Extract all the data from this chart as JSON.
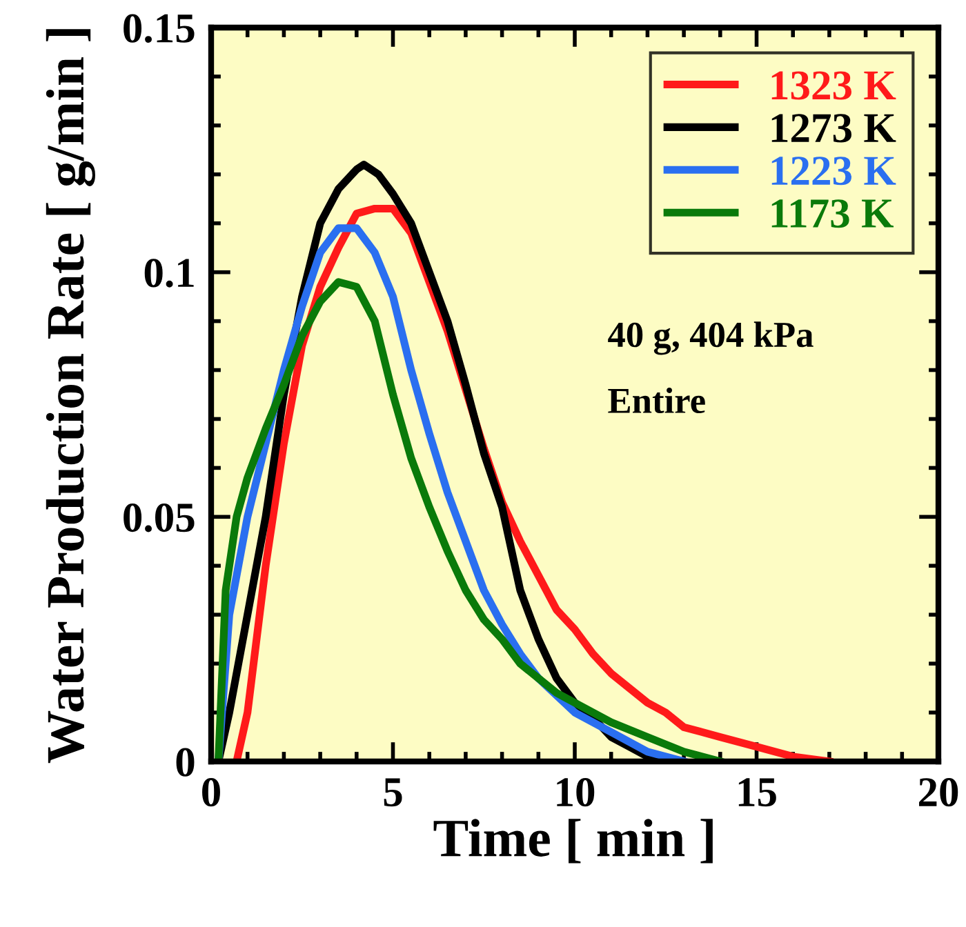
{
  "chart_data": {
    "type": "line",
    "xlabel": "Time [ min ]",
    "ylabel": "Water Production Rate [ g/min ]",
    "xlim": [
      0,
      20
    ],
    "ylim": [
      0,
      0.15
    ],
    "xticks": [
      0,
      5,
      10,
      15,
      20
    ],
    "yticks": [
      0,
      0.05,
      {
        "value": 0.1,
        "label": "0.1"
      },
      0.15
    ],
    "legend": "top right",
    "grid": false,
    "line_style": "solid",
    "marker": "none",
    "annotations": [
      "40 g, 404 kPa",
      "Entire"
    ],
    "series": [
      {
        "name": "1323 K",
        "color": "#ff1a1a",
        "x": [
          0.7,
          1,
          1.5,
          2,
          2.5,
          3,
          3.5,
          4,
          4.5,
          5,
          5.5,
          6,
          6.5,
          7,
          7.5,
          8,
          8.5,
          9,
          9.5,
          10,
          10.5,
          11,
          11.5,
          12,
          12.5,
          13,
          14,
          15,
          16,
          17
        ],
        "values": [
          0,
          0.01,
          0.04,
          0.065,
          0.085,
          0.097,
          0.105,
          0.112,
          0.113,
          0.113,
          0.108,
          0.098,
          0.088,
          0.076,
          0.064,
          0.053,
          0.045,
          0.038,
          0.031,
          0.027,
          0.022,
          0.018,
          0.015,
          0.012,
          0.01,
          0.007,
          0.005,
          0.003,
          0.001,
          0
        ]
      },
      {
        "name": "1273 K",
        "color": "#000000",
        "x": [
          0.2,
          0.5,
          1,
          1.5,
          2,
          2.5,
          3,
          3.5,
          4,
          4.2,
          4.6,
          5,
          5.5,
          6,
          6.5,
          7,
          7.5,
          8,
          8.5,
          9,
          9.5,
          10,
          10.5,
          11,
          11.5,
          12,
          12.5
        ],
        "values": [
          0,
          0.01,
          0.03,
          0.05,
          0.075,
          0.095,
          0.11,
          0.117,
          0.121,
          0.122,
          0.12,
          0.116,
          0.11,
          0.1,
          0.09,
          0.077,
          0.063,
          0.052,
          0.035,
          0.025,
          0.017,
          0.012,
          0.009,
          0.005,
          0.003,
          0.001,
          0
        ]
      },
      {
        "name": "1223 K",
        "color": "#2a6ff0",
        "x": [
          0.2,
          0.5,
          1,
          1.5,
          2,
          2.5,
          3,
          3.5,
          4,
          4.5,
          5,
          5.5,
          6,
          6.5,
          7,
          7.5,
          8,
          8.5,
          9,
          10,
          11,
          12,
          13
        ],
        "values": [
          0,
          0.03,
          0.05,
          0.065,
          0.08,
          0.093,
          0.104,
          0.109,
          0.109,
          0.104,
          0.095,
          0.08,
          0.067,
          0.055,
          0.045,
          0.035,
          0.028,
          0.022,
          0.017,
          0.01,
          0.006,
          0.002,
          0
        ]
      },
      {
        "name": "1173 K",
        "color": "#0a7a0a",
        "x": [
          0.2,
          0.4,
          0.7,
          1,
          1.5,
          2,
          2.5,
          3,
          3.5,
          4,
          4.5,
          5,
          5.5,
          6,
          6.5,
          7,
          7.5,
          8,
          8.5,
          9,
          9.5,
          10,
          11,
          12,
          13,
          14
        ],
        "values": [
          0,
          0.035,
          0.05,
          0.058,
          0.068,
          0.077,
          0.087,
          0.094,
          0.098,
          0.097,
          0.09,
          0.075,
          0.062,
          0.052,
          0.043,
          0.035,
          0.029,
          0.025,
          0.02,
          0.017,
          0.014,
          0.012,
          0.008,
          0.005,
          0.002,
          0
        ]
      }
    ]
  }
}
